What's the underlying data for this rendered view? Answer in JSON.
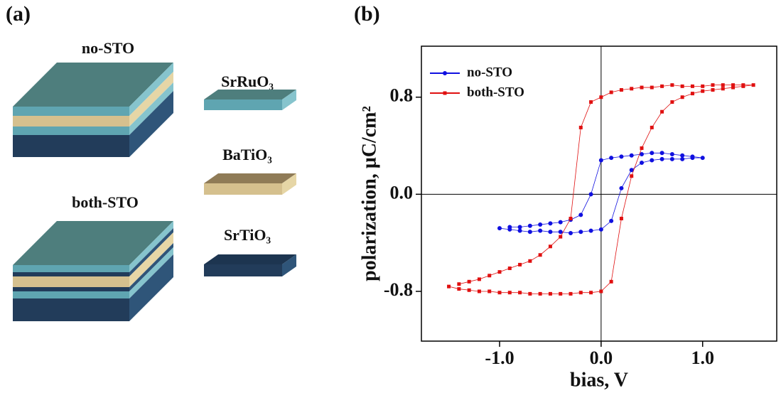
{
  "panels": {
    "a": "(a)",
    "b": "(b)"
  },
  "diagram": {
    "stacks": [
      "no-STO",
      "both-STO"
    ],
    "layers": [
      "SrRuO₃",
      "BaTiO₃",
      "SrTiO₃"
    ]
  },
  "chart_data": {
    "type": "scatter",
    "x_label": "bias, V",
    "y_label": "polarization, μC/cm²",
    "xlim": [
      -1.77,
      1.73
    ],
    "ylim": [
      -1.21,
      1.22
    ],
    "xticks": [
      {
        "value": -1,
        "label": "-1.0"
      },
      {
        "value": 0,
        "label": "0.0"
      },
      {
        "value": 1,
        "label": "1.0"
      }
    ],
    "yticks": [
      -0.8,
      {
        "value": 0,
        "label": "0.0"
      },
      0.8
    ],
    "zero_lines": true,
    "legend": "upper left",
    "series": [
      {
        "name": "no-STO",
        "color": "#1010e0",
        "marker": "circle",
        "x": [
          -1.0,
          -0.9,
          -0.8,
          -0.7,
          -0.6,
          -0.5,
          -0.4,
          -0.3,
          -0.2,
          -0.1,
          0.0,
          0.1,
          0.2,
          0.3,
          0.4,
          0.5,
          0.6,
          0.7,
          0.8,
          0.9,
          1.0,
          0.9,
          0.8,
          0.7,
          0.6,
          0.5,
          0.4,
          0.3,
          0.2,
          0.1,
          0.0,
          -0.1,
          -0.2,
          -0.3,
          -0.4,
          -0.5,
          -0.6,
          -0.7,
          -0.8,
          -0.9
        ],
        "values": [
          -0.28,
          -0.29,
          -0.3,
          -0.31,
          -0.3,
          -0.31,
          -0.31,
          -0.32,
          -0.31,
          -0.3,
          -0.29,
          -0.22,
          0.05,
          0.2,
          0.26,
          0.28,
          0.29,
          0.29,
          0.29,
          0.3,
          0.3,
          0.31,
          0.32,
          0.33,
          0.34,
          0.34,
          0.33,
          0.32,
          0.31,
          0.3,
          0.28,
          0.0,
          -0.17,
          -0.21,
          -0.23,
          -0.24,
          -0.25,
          -0.26,
          -0.27,
          -0.27
        ]
      },
      {
        "name": "both-STO",
        "color": "#e01010",
        "marker": "square",
        "x": [
          -1.5,
          -1.4,
          -1.3,
          -1.2,
          -1.1,
          -1.0,
          -0.9,
          -0.8,
          -0.7,
          -0.6,
          -0.5,
          -0.4,
          -0.3,
          -0.2,
          -0.1,
          0.0,
          0.1,
          0.2,
          0.3,
          0.4,
          0.5,
          0.6,
          0.7,
          0.8,
          0.9,
          1.0,
          1.1,
          1.2,
          1.3,
          1.4,
          1.5,
          1.4,
          1.3,
          1.2,
          1.1,
          1.0,
          0.9,
          0.8,
          0.7,
          0.6,
          0.5,
          0.4,
          0.3,
          0.2,
          0.1,
          0.0,
          -0.1,
          -0.2,
          -0.3,
          -0.4,
          -0.5,
          -0.6,
          -0.7,
          -0.8,
          -0.9,
          -1.0,
          -1.1,
          -1.2,
          -1.3,
          -1.4
        ],
        "values": [
          -0.76,
          -0.78,
          -0.79,
          -0.8,
          -0.8,
          -0.81,
          -0.81,
          -0.81,
          -0.82,
          -0.82,
          -0.82,
          -0.82,
          -0.82,
          -0.81,
          -0.81,
          -0.8,
          -0.72,
          -0.2,
          0.15,
          0.38,
          0.55,
          0.68,
          0.76,
          0.8,
          0.83,
          0.85,
          0.86,
          0.87,
          0.88,
          0.89,
          0.9,
          0.9,
          0.9,
          0.9,
          0.9,
          0.89,
          0.89,
          0.89,
          0.9,
          0.89,
          0.88,
          0.88,
          0.87,
          0.86,
          0.84,
          0.8,
          0.76,
          0.55,
          -0.2,
          -0.35,
          -0.43,
          -0.5,
          -0.55,
          -0.58,
          -0.61,
          -0.64,
          -0.67,
          -0.7,
          -0.72,
          -0.74
        ]
      }
    ]
  }
}
